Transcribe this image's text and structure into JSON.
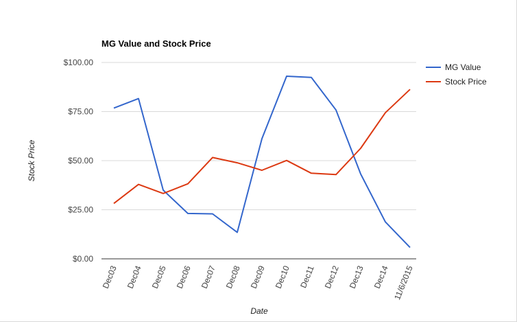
{
  "chart_data": {
    "type": "line",
    "title": "MG Value and Stock Price",
    "xlabel": "Date",
    "ylabel": "Stock Price",
    "categories": [
      "Dec03",
      "Dec04",
      "Dec05",
      "Dec06",
      "Dec07",
      "Dec08",
      "Dec09",
      "Dec10",
      "Dec11",
      "Dec12",
      "Dec13",
      "Dec14",
      "11/6/2015"
    ],
    "yticks": [
      "$0.00",
      "$25.00",
      "$50.00",
      "$75.00",
      "$100.00"
    ],
    "ylim": [
      0,
      100
    ],
    "grid": true,
    "legend_position": "right",
    "series": [
      {
        "name": "MG Value",
        "color": "#3366cc",
        "values": [
          76.8,
          81.6,
          35.0,
          23.1,
          22.9,
          13.5,
          61.2,
          93.0,
          92.4,
          75.8,
          43.2,
          18.8,
          5.8
        ]
      },
      {
        "name": "Stock Price",
        "color": "#dc3912",
        "values": [
          28.2,
          37.9,
          33.3,
          38.2,
          51.6,
          48.9,
          45.1,
          50.1,
          43.6,
          42.9,
          56.3,
          74.4,
          86.3
        ]
      }
    ]
  }
}
